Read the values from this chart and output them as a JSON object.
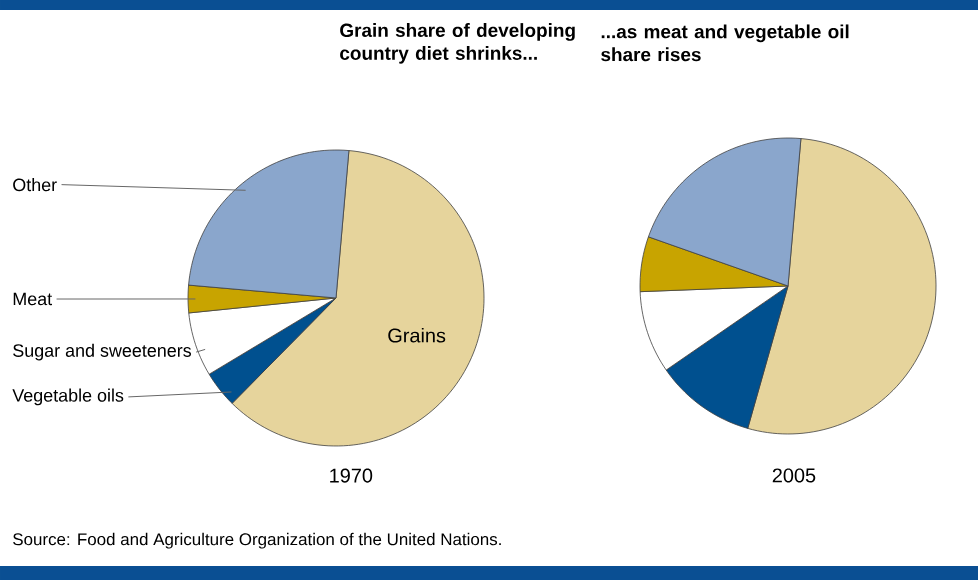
{
  "chart_data": [
    {
      "type": "pie",
      "title": "Grain share of developing country diet shrinks...",
      "xlabel": "1970",
      "categories": [
        "Grains",
        "Vegetable oils",
        "Sugar and sweeteners",
        "Meat",
        "Other"
      ],
      "values": [
        61,
        4,
        7,
        3,
        25
      ],
      "colors": [
        "#e6d49c",
        "#00508f",
        "#ffffff",
        "#c8a400",
        "#8aa6cc"
      ],
      "annotations": [
        "Source:  Food and Agriculture Organization of the United Nations."
      ]
    },
    {
      "type": "pie",
      "title": "...as meat and vegetable oil share rises",
      "xlabel": "2005",
      "categories": [
        null,
        null,
        null,
        null,
        null
      ],
      "values": [
        53,
        11,
        9,
        6,
        21
      ],
      "colors": [
        "#e6d49c",
        "#00508f",
        "#ffffff",
        "#c8a400",
        "#8aa6cc"
      ]
    }
  ]
}
